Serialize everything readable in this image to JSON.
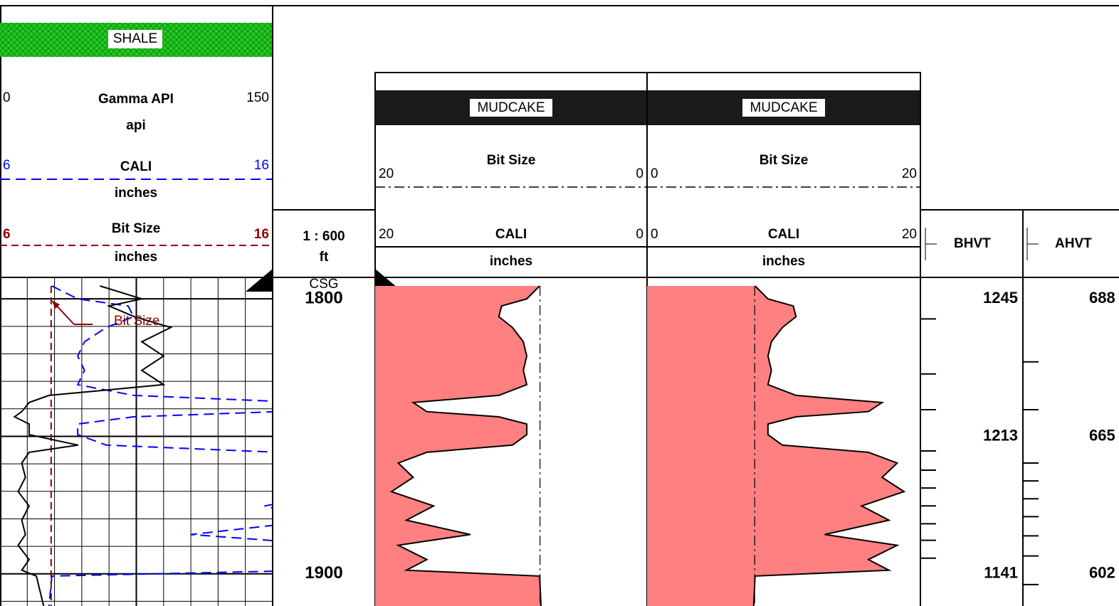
{
  "chart_data": {
    "type": "log",
    "lithology": "SHALE",
    "scale": "1 : 600",
    "depth_unit": "ft",
    "casing_label": "CSG",
    "ylim": [
      1795.3,
      1911.7
    ],
    "yticks": [
      1800,
      1900
    ],
    "grid_major": [
      1800,
      1850,
      1900
    ],
    "grid_minor": [
      1810,
      1820,
      1830,
      1840,
      1860,
      1870,
      1880,
      1890,
      1910
    ],
    "bit_size": 7.875,
    "left_track": {
      "gamma": {
        "name": "Gamma API",
        "unit": "api",
        "range": [
          0,
          150
        ],
        "color": "#000000"
      },
      "cali": {
        "name": "CALI",
        "unit": "inches",
        "range": [
          6,
          16
        ],
        "color": "#0000ff"
      },
      "bit": {
        "name": "Bit Size",
        "unit": "inches",
        "range": [
          6,
          16
        ],
        "color": "#8b0000"
      },
      "annotation": "Bit Size"
    },
    "caliper_tracks": [
      {
        "fill_label": "MUDCAKE",
        "fill_color": "#ff8080",
        "bit_name": "Bit Size",
        "cali_name": "CALI",
        "unit": "inches",
        "range": [
          20,
          0
        ],
        "cali_range": [
          20,
          0
        ]
      },
      {
        "fill_label": "MUDCAKE",
        "fill_color": "#ff8080",
        "bit_name": "Bit Size",
        "cali_name": "CALI",
        "unit": "inches",
        "range": [
          0,
          20
        ],
        "cali_range": [
          0,
          20
        ]
      }
    ],
    "depth": [
      1795.3,
      1800,
      1802.6,
      1806.5,
      1810.4,
      1815.6,
      1820.8,
      1826.0,
      1831.2,
      1835.1,
      1837.7,
      1841.0,
      1842.9,
      1845.5,
      1849.4,
      1853.2,
      1855.8,
      1859.7,
      1864.9,
      1870.1,
      1875.3,
      1880.5,
      1885.7,
      1889.6,
      1894.8,
      1898.7,
      1900.8,
      1911.7
    ],
    "cali": [
      7.9,
      8.85,
      10.7,
      10.9,
      9.9,
      9.1,
      8.85,
      9.1,
      8.85,
      10.9,
      17.2,
      16.2,
      10.9,
      8.85,
      8.85,
      9.9,
      16.2,
      18.3,
      17.2,
      18.8,
      15.7,
      17.7,
      13.0,
      18.3,
      16.2,
      17.7,
      7.9,
      7.8
    ],
    "gamma": [
      55,
      78,
      60,
      74,
      94,
      78,
      90,
      78,
      90,
      27,
      16,
      12,
      8,
      16,
      16,
      43,
      16,
      12,
      14,
      10,
      16,
      12,
      14,
      10,
      16,
      12,
      20,
      24
    ],
    "bhvt": {
      "name": "BHVT",
      "labels": [
        {
          "depth": 1800,
          "value": 1245
        },
        {
          "depth": 1850,
          "value": 1213
        },
        {
          "depth": 1900,
          "value": 1141
        }
      ],
      "marks": [
        1807.3,
        1827.3,
        1840.3,
        1855.3,
        1862.3,
        1868.8,
        1875.3,
        1881.8,
        1887.8,
        1894.3
      ]
    },
    "ahvt": {
      "name": "AHVT",
      "labels": [
        {
          "depth": 1800,
          "value": 688
        },
        {
          "depth": 1850,
          "value": 665
        },
        {
          "depth": 1900,
          "value": 602
        }
      ],
      "marks": [
        1822.9,
        1840.3,
        1859.7,
        1866.2,
        1872.7,
        1879.2,
        1886.2,
        1893.5,
        1903.9
      ]
    }
  }
}
